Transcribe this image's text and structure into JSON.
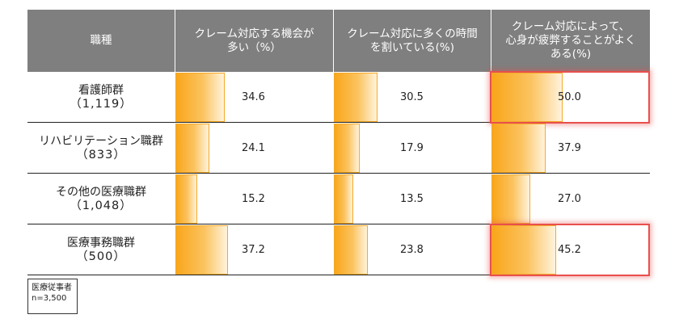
{
  "chart_data": {
    "type": "table",
    "header": {
      "category": "職種",
      "columns": [
        [
          "クレーム対応する機会が",
          "多い（%）"
        ],
        [
          "クレーム対応に多くの時間",
          "を割いている(%)"
        ],
        [
          "クレーム対応によって、",
          "心身が疲弊することがよく",
          "ある(%)"
        ]
      ]
    },
    "rows": [
      {
        "name": "看護師群",
        "n": "（1,119）",
        "values": [
          34.6,
          30.5,
          50.0
        ],
        "labels": [
          "34.6",
          "30.5",
          "50.0"
        ]
      },
      {
        "name": "リハビリテーション職群",
        "n": "（833）",
        "values": [
          24.1,
          17.9,
          37.9
        ],
        "labels": [
          "24.1",
          "17.9",
          "37.9"
        ]
      },
      {
        "name": "その他の医療職群",
        "n": "（1,048）",
        "values": [
          15.2,
          13.5,
          27.0
        ],
        "labels": [
          "15.2",
          "13.5",
          "27.0"
        ]
      },
      {
        "name": "医療事務職群",
        "n": "（500）",
        "values": [
          37.2,
          23.8,
          45.2
        ],
        "labels": [
          "37.2",
          "23.8",
          "45.2"
        ]
      }
    ],
    "highlighted_cells": [
      [
        0,
        2
      ],
      [
        3,
        2
      ]
    ],
    "colors": {
      "bar": "#f9a61a",
      "header": "#7f7f7f",
      "highlight": "#e8504d"
    }
  },
  "note": [
    "医療従事者",
    "n=3,500"
  ]
}
